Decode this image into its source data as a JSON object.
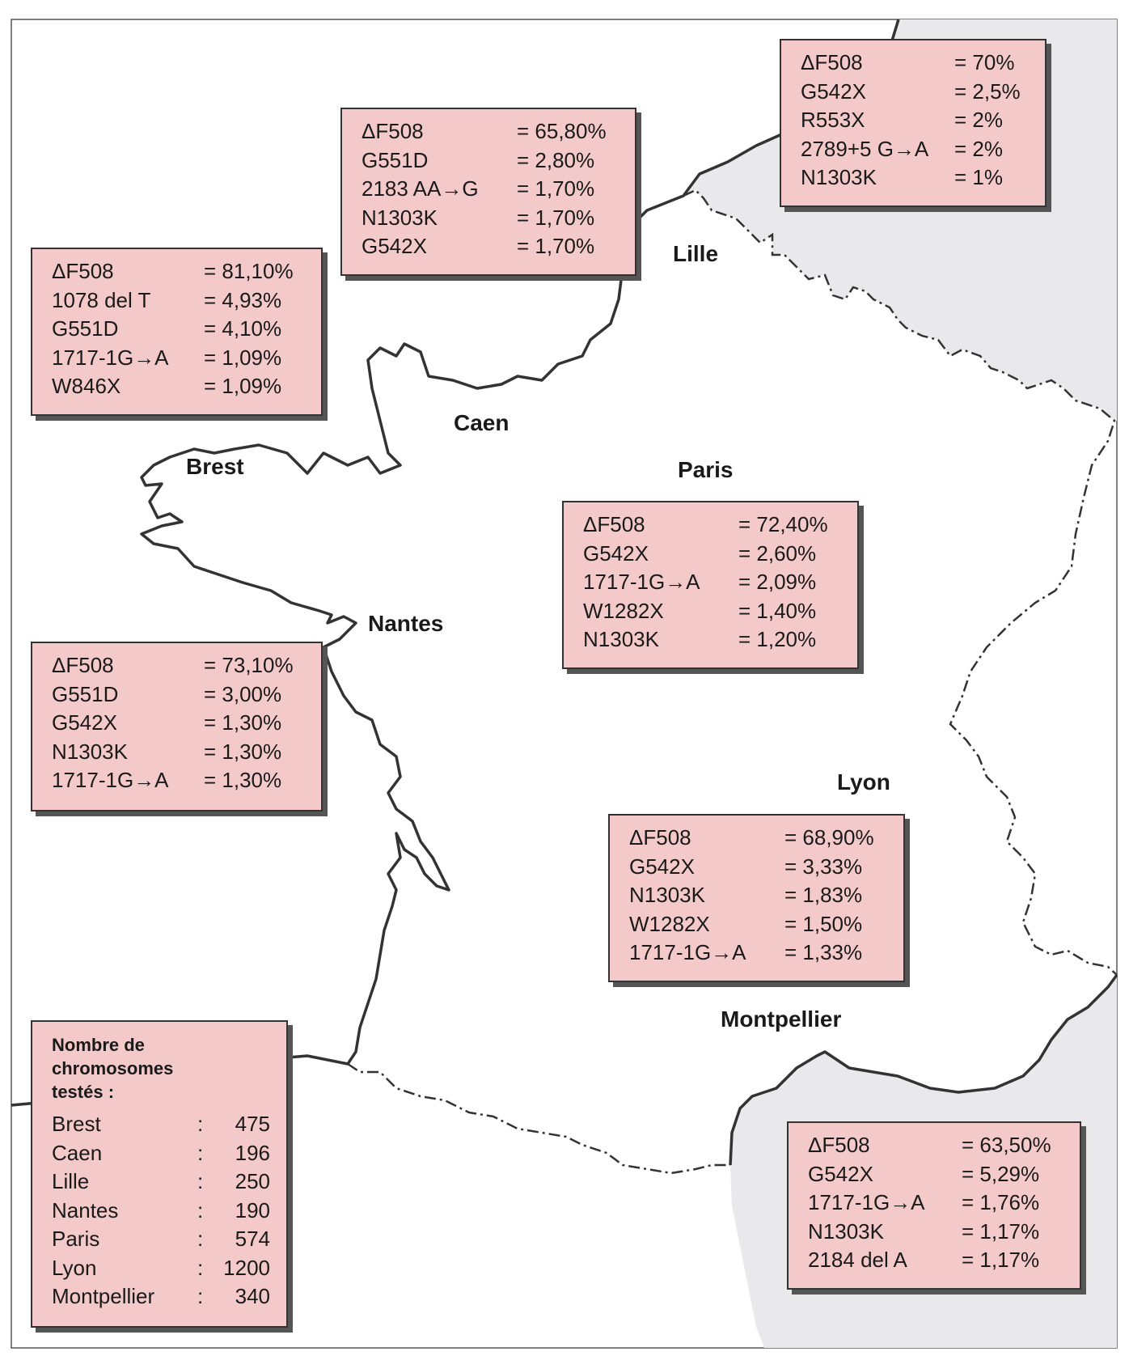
{
  "colors": {
    "box_fill": "#f4c9c9",
    "sea": "#ffffff",
    "land": "#ffffff",
    "neighbor_land": "#e9e9ec",
    "coast": "#333333"
  },
  "cities": {
    "lille": "Lille",
    "caen": "Caen",
    "brest": "Brest",
    "paris": "Paris",
    "nantes": "Nantes",
    "lyon": "Lyon",
    "montpellier": "Montpellier"
  },
  "boxes": {
    "lille": [
      {
        "mutation": "ΔF508",
        "value": "= 70%"
      },
      {
        "mutation": "G542X",
        "value": "= 2,5%"
      },
      {
        "mutation": "R553X",
        "value": "= 2%"
      },
      {
        "mutation": "2789+5 G→A",
        "value": "= 2%"
      },
      {
        "mutation": "N1303K",
        "value": "= 1%"
      }
    ],
    "caen": [
      {
        "mutation": "ΔF508",
        "value": "= 65,80%"
      },
      {
        "mutation": "G551D",
        "value": "= 2,80%"
      },
      {
        "mutation": "2183 AA→G",
        "value": "= 1,70%"
      },
      {
        "mutation": "N1303K",
        "value": "= 1,70%"
      },
      {
        "mutation": "G542X",
        "value": "= 1,70%"
      }
    ],
    "brest": [
      {
        "mutation": "ΔF508",
        "value": "= 81,10%"
      },
      {
        "mutation": "1078 del T",
        "value": "= 4,93%"
      },
      {
        "mutation": "G551D",
        "value": "= 4,10%"
      },
      {
        "mutation": "1717-1G→A",
        "value": "= 1,09%"
      },
      {
        "mutation": "W846X",
        "value": "= 1,09%"
      }
    ],
    "paris": [
      {
        "mutation": "ΔF508",
        "value": "= 72,40%"
      },
      {
        "mutation": "G542X",
        "value": "= 2,60%"
      },
      {
        "mutation": "1717-1G→A",
        "value": "= 2,09%"
      },
      {
        "mutation": "W1282X",
        "value": "= 1,40%"
      },
      {
        "mutation": "N1303K",
        "value": "= 1,20%"
      }
    ],
    "nantes": [
      {
        "mutation": "ΔF508",
        "value": "= 73,10%"
      },
      {
        "mutation": "G551D",
        "value": "= 3,00%"
      },
      {
        "mutation": "G542X",
        "value": "= 1,30%"
      },
      {
        "mutation": "N1303K",
        "value": "= 1,30%"
      },
      {
        "mutation": "1717-1G→A",
        "value": "= 1,30%"
      }
    ],
    "lyon": [
      {
        "mutation": "ΔF508",
        "value": "= 68,90%"
      },
      {
        "mutation": "G542X",
        "value": "= 3,33%"
      },
      {
        "mutation": "N1303K",
        "value": "= 1,83%"
      },
      {
        "mutation": "W1282X",
        "value": "= 1,50%"
      },
      {
        "mutation": "1717-1G→A",
        "value": "= 1,33%"
      }
    ],
    "montpellier": [
      {
        "mutation": "ΔF508",
        "value": "= 63,50%"
      },
      {
        "mutation": "G542X",
        "value": "= 5,29%"
      },
      {
        "mutation": "1717-1G→A",
        "value": "= 1,76%"
      },
      {
        "mutation": "N1303K",
        "value": "= 1,17%"
      },
      {
        "mutation": "2184 del A",
        "value": "= 1,17%"
      }
    ]
  },
  "summary": {
    "title": "Nombre de\nchromosomes\ntestés :",
    "rows": [
      {
        "city": "Brest",
        "colon": ":",
        "count": "475"
      },
      {
        "city": "Caen",
        "colon": ":",
        "count": "196"
      },
      {
        "city": "Lille",
        "colon": ":",
        "count": "250"
      },
      {
        "city": "Nantes",
        "colon": ":",
        "count": "190"
      },
      {
        "city": "Paris",
        "colon": ":",
        "count": "574"
      },
      {
        "city": "Lyon",
        "colon": ":",
        "count": "1200"
      },
      {
        "city": "Montpellier",
        "colon": ":",
        "count": "340"
      }
    ]
  }
}
